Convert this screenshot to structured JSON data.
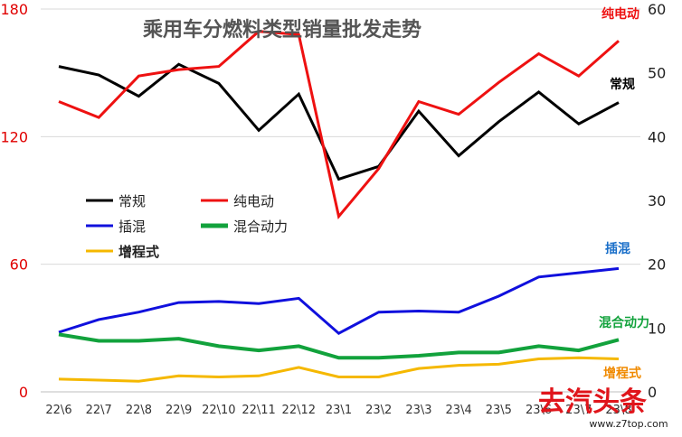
{
  "chart_data": {
    "type": "line",
    "title": "乘用车分燃料类型销量批发走势",
    "categories": [
      "22\\6",
      "22\\7",
      "22\\8",
      "22\\9",
      "22\\10",
      "22\\11",
      "22\\12",
      "23\\1",
      "23\\2",
      "23\\3",
      "23\\4",
      "23\\5",
      "23\\6",
      "23\\7",
      "23\\8"
    ],
    "y_left": {
      "ticks": [
        "0",
        "60",
        "120",
        "180"
      ],
      "range": [
        0,
        180
      ],
      "color": "#e00000"
    },
    "y_right": {
      "ticks": [
        "0",
        "10",
        "20",
        "30",
        "40",
        "50",
        "60"
      ],
      "range": [
        0,
        60
      ],
      "color": "#222222"
    },
    "grid": true,
    "legend_position": "center-left",
    "series": [
      {
        "name": "常规",
        "axis": "left",
        "color": "#000000",
        "values": [
          153,
          149,
          139,
          154,
          145,
          123,
          140,
          100,
          106,
          132,
          111,
          127,
          141,
          126,
          136
        ]
      },
      {
        "name": "纯电动",
        "axis": "right",
        "color": "#ee1111",
        "values": [
          45.5,
          43,
          49.5,
          50.5,
          51,
          56.5,
          56,
          27.5,
          35,
          45.5,
          43.5,
          48.5,
          53,
          49.5,
          55
        ]
      },
      {
        "name": "插混",
        "axis": "left",
        "color": "#1010dd",
        "values": [
          28,
          34,
          37.5,
          42,
          42.5,
          41.5,
          44,
          27.5,
          37.5,
          38,
          37.5,
          45,
          54,
          56,
          58
        ]
      },
      {
        "name": "混合动力",
        "axis": "left",
        "color": "#12a23c",
        "values": [
          27,
          24,
          24,
          25,
          21.5,
          19.5,
          21.5,
          16,
          16,
          17,
          18.5,
          18.5,
          21.5,
          19.5,
          24.5
        ]
      },
      {
        "name": "增程式",
        "axis": "left",
        "color": "#f5b800",
        "values": [
          6,
          5.5,
          5,
          7.5,
          7,
          7.5,
          11.5,
          7,
          7,
          11,
          12.5,
          13,
          15.5,
          16,
          15.5
        ]
      }
    ],
    "end_labels": [
      {
        "text": "纯电动",
        "color": "#ee1111"
      },
      {
        "text": "常规",
        "color": "#000000"
      },
      {
        "text": "插混",
        "color": "#1a6fc9"
      },
      {
        "text": "混合动力",
        "color": "#12a23c"
      },
      {
        "text": "增程式",
        "color": "#f08a00"
      }
    ]
  },
  "watermark": {
    "text": "www.z7top.com",
    "logo_text": "去汽头条"
  }
}
